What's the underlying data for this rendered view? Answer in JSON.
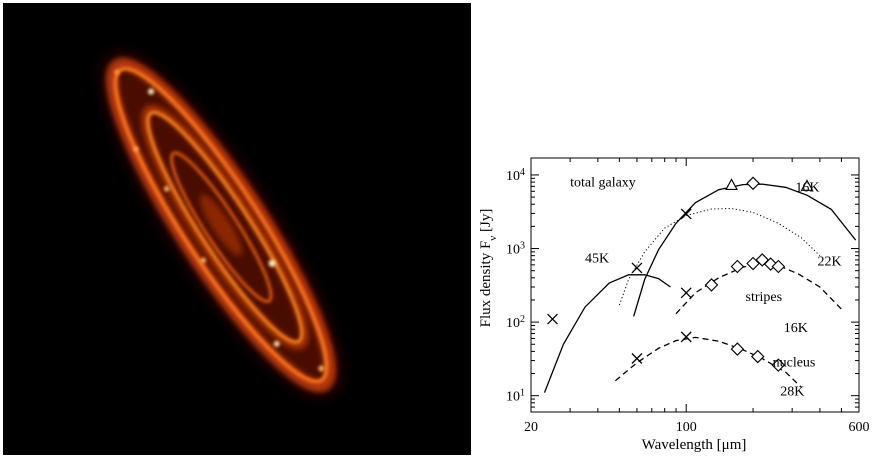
{
  "figure": {
    "left_panel": {
      "icons": {
        "image": "galaxy-infrared-image"
      }
    },
    "colors": {
      "galaxy_glow": "#ff6a10",
      "galaxy_core": "#fff2c0",
      "background": "#000000",
      "ink": "#000000"
    }
  },
  "chart_data": {
    "type": "scatter",
    "xlabel": "Wavelength [μm]",
    "ylabel_main": "Flux density F",
    "ylabel_sub": "ν",
    "ylabel_unit": " [Jy]",
    "x_scale": "log",
    "y_scale": "log",
    "xlim": [
      20,
      600
    ],
    "ylim": [
      6,
      17000
    ],
    "x_tick_labels": [
      {
        "value": 20,
        "label": "20"
      },
      {
        "value": 100,
        "label": "100"
      },
      {
        "value": 600,
        "label": "600"
      }
    ],
    "y_tick_labels": [
      {
        "value": 10,
        "base": "10",
        "exp": "1"
      },
      {
        "value": 100,
        "base": "10",
        "exp": "2"
      },
      {
        "value": 1000,
        "base": "10",
        "exp": "3"
      },
      {
        "value": 10000,
        "base": "10",
        "exp": "4"
      }
    ],
    "annotations": [
      {
        "text": "total galaxy",
        "x": 30,
        "y": 7000,
        "anchor": "start"
      },
      {
        "text": "16K",
        "x": 310,
        "y": 6000,
        "anchor": "start"
      },
      {
        "text": "45K",
        "x": 35,
        "y": 650,
        "anchor": "start"
      },
      {
        "text": "22K",
        "x": 390,
        "y": 590,
        "anchor": "start"
      },
      {
        "text": "stripes",
        "x": 185,
        "y": 195,
        "anchor": "start"
      },
      {
        "text": "16K",
        "x": 275,
        "y": 73,
        "anchor": "start"
      },
      {
        "text": "nucleus",
        "x": 245,
        "y": 25,
        "anchor": "start"
      },
      {
        "text": "28K",
        "x": 265,
        "y": 10,
        "anchor": "start"
      }
    ],
    "series": [
      {
        "marker": "cross",
        "points": [
          [
            25,
            110
          ],
          [
            60,
            545
          ],
          [
            100,
            2950
          ]
        ]
      },
      {
        "marker": "triangle",
        "points": [
          [
            160,
            7200
          ],
          [
            350,
            7000
          ]
        ]
      },
      {
        "marker": "diamond",
        "points": [
          [
            200,
            7700
          ]
        ]
      },
      {
        "marker": "cross",
        "points": [
          [
            100,
            250
          ]
        ]
      },
      {
        "marker": "diamond",
        "points": [
          [
            130,
            320
          ],
          [
            170,
            570
          ],
          [
            200,
            625
          ],
          [
            220,
            700
          ],
          [
            240,
            615
          ],
          [
            260,
            570
          ]
        ]
      },
      {
        "marker": "cross",
        "points": [
          [
            60,
            32
          ],
          [
            100,
            63
          ]
        ]
      },
      {
        "marker": "diamond",
        "points": [
          [
            170,
            43
          ],
          [
            210,
            34
          ],
          [
            260,
            26
          ]
        ]
      }
    ],
    "curves": [
      {
        "style": "solid",
        "points": [
          [
            23,
            11
          ],
          [
            28,
            50
          ],
          [
            35,
            160
          ],
          [
            45,
            340
          ],
          [
            55,
            440
          ],
          [
            65,
            440
          ],
          [
            75,
            390
          ],
          [
            85,
            300
          ]
        ]
      },
      {
        "style": "solid",
        "points": [
          [
            58,
            120
          ],
          [
            65,
            380
          ],
          [
            75,
            960
          ],
          [
            90,
            2200
          ],
          [
            110,
            4200
          ],
          [
            140,
            6300
          ],
          [
            180,
            7400
          ],
          [
            220,
            7500
          ],
          [
            280,
            6800
          ],
          [
            350,
            5300
          ],
          [
            450,
            3400
          ],
          [
            580,
            1300
          ]
        ]
      },
      {
        "style": "dotted",
        "points": [
          [
            50,
            170
          ],
          [
            55,
            380
          ],
          [
            65,
            900
          ],
          [
            80,
            1900
          ],
          [
            100,
            2800
          ],
          [
            130,
            3450
          ],
          [
            160,
            3500
          ],
          [
            200,
            3100
          ],
          [
            260,
            2200
          ],
          [
            330,
            1400
          ],
          [
            400,
            800
          ]
        ]
      },
      {
        "style": "dashed",
        "points": [
          [
            90,
            130
          ],
          [
            110,
            250
          ],
          [
            140,
            400
          ],
          [
            180,
            560
          ],
          [
            220,
            620
          ],
          [
            260,
            590
          ],
          [
            320,
            450
          ],
          [
            400,
            300
          ],
          [
            500,
            150
          ]
        ]
      },
      {
        "style": "dashed",
        "points": [
          [
            48,
            16
          ],
          [
            60,
            28
          ],
          [
            75,
            44
          ],
          [
            90,
            56
          ],
          [
            110,
            62
          ],
          [
            140,
            55
          ],
          [
            180,
            42
          ],
          [
            220,
            32
          ],
          [
            280,
            21
          ],
          [
            330,
            13
          ]
        ]
      }
    ]
  }
}
